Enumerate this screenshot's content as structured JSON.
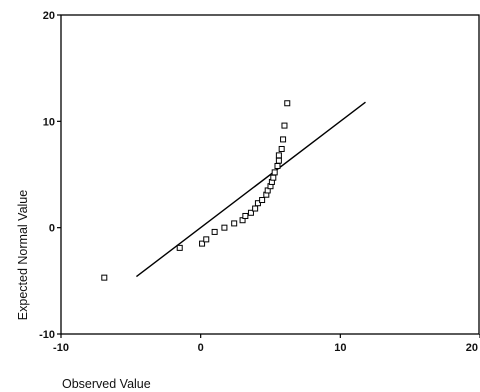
{
  "chart_data": {
    "type": "scatter",
    "title": "",
    "xlabel": "Observed Value",
    "ylabel": "Expected Normal Value",
    "xlim": [
      -10,
      20
    ],
    "ylim": [
      -10,
      20
    ],
    "xticks": [
      -10,
      0,
      10,
      20
    ],
    "yticks": [
      -10,
      0,
      10,
      20
    ],
    "xtick_labels": [
      "-10",
      "0",
      "10",
      "20"
    ],
    "ytick_labels": [
      "-10",
      "0",
      "10",
      "20"
    ],
    "grid": false,
    "legend": "none",
    "colors": {
      "axis": "#000000",
      "marker": "#000000",
      "line": "#000000"
    },
    "series": [
      {
        "marker": "open-square",
        "points": [
          {
            "x": -6.9,
            "y": -4.7
          },
          {
            "x": -1.5,
            "y": -1.9
          },
          {
            "x": 0.1,
            "y": -1.5
          },
          {
            "x": 0.4,
            "y": -1.1
          },
          {
            "x": 1.0,
            "y": -0.4
          },
          {
            "x": 1.7,
            "y": 0.0
          },
          {
            "x": 2.4,
            "y": 0.4
          },
          {
            "x": 3.0,
            "y": 0.7
          },
          {
            "x": 3.2,
            "y": 1.1
          },
          {
            "x": 3.6,
            "y": 1.4
          },
          {
            "x": 3.9,
            "y": 1.8
          },
          {
            "x": 4.1,
            "y": 2.3
          },
          {
            "x": 4.4,
            "y": 2.6
          },
          {
            "x": 4.7,
            "y": 3.1
          },
          {
            "x": 4.8,
            "y": 3.5
          },
          {
            "x": 5.0,
            "y": 3.9
          },
          {
            "x": 5.1,
            "y": 4.3
          },
          {
            "x": 5.2,
            "y": 4.7
          },
          {
            "x": 5.3,
            "y": 5.2
          },
          {
            "x": 5.5,
            "y": 5.8
          },
          {
            "x": 5.6,
            "y": 6.3
          },
          {
            "x": 5.6,
            "y": 6.8
          },
          {
            "x": 5.8,
            "y": 7.4
          },
          {
            "x": 5.9,
            "y": 8.3
          },
          {
            "x": 6.0,
            "y": 9.6
          },
          {
            "x": 6.2,
            "y": 11.7
          }
        ]
      }
    ],
    "reference_line": {
      "x1": -4.6,
      "y1": -4.6,
      "x2": 11.8,
      "y2": 11.8
    }
  }
}
